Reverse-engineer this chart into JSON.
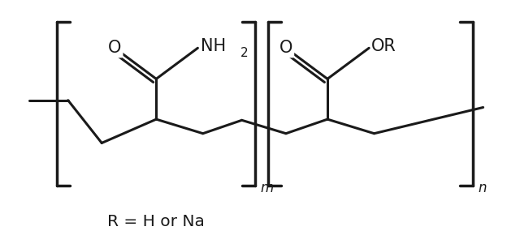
{
  "bg_color": "#ffffff",
  "line_color": "#1a1a1a",
  "line_width": 2.2,
  "bracket_lw": 2.5,
  "text_color": "#1a1a1a",
  "fig_width": 6.4,
  "fig_height": 3.06,
  "dpi": 100,
  "label_bottom": "R = H or Na",
  "label_m": "m",
  "label_n": "n"
}
